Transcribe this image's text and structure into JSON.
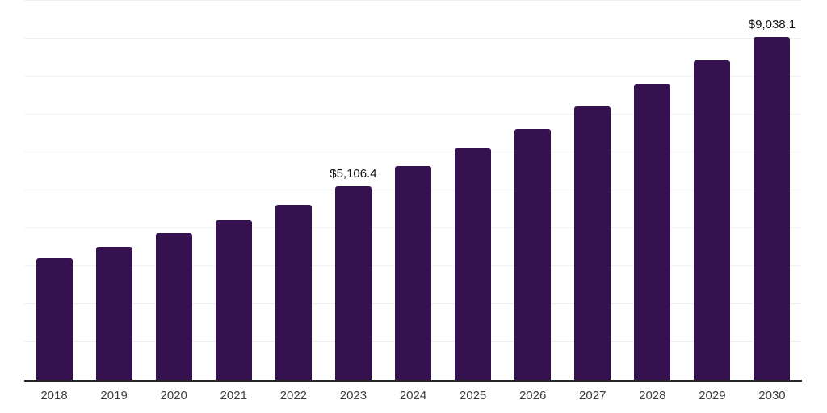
{
  "chart_data": {
    "type": "bar",
    "title": "",
    "xlabel": "",
    "ylabel": "",
    "categories": [
      "2018",
      "2019",
      "2020",
      "2021",
      "2022",
      "2023",
      "2024",
      "2025",
      "2026",
      "2027",
      "2028",
      "2029",
      "2030"
    ],
    "values": [
      3210,
      3510,
      3870,
      4210,
      4620,
      5106.4,
      5640,
      6110,
      6620,
      7210,
      7810,
      8430,
      9038.1
    ],
    "point_labels": [
      "",
      "",
      "",
      "",
      "",
      "$5,106.4",
      "",
      "",
      "",
      "",
      "",
      "",
      "$9,038.1"
    ],
    "ylim": [
      0,
      10000
    ],
    "gridline_interval": 1000,
    "grid": "horizontal only",
    "legend": "none",
    "colors": {
      "bar": "#35124F",
      "gridline": "#f0f0f0",
      "axis": "#262626",
      "tick": "#3d3d3d",
      "value_label": "#121212",
      "background": "#ffffff"
    }
  }
}
